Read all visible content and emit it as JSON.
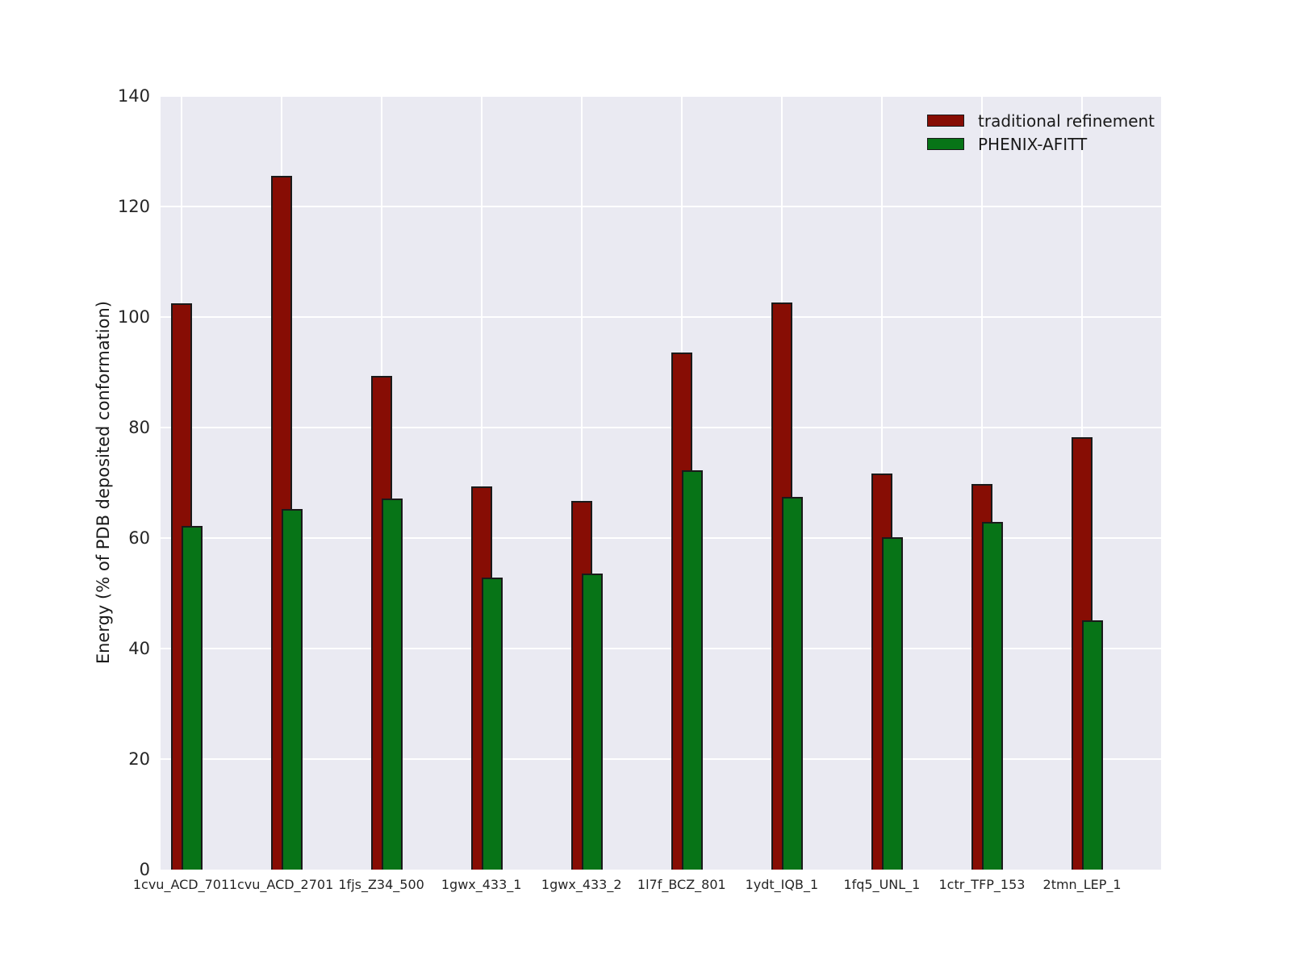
{
  "figure": {
    "ylabel": "Energy (% of PDB deposited conformation)"
  },
  "legend": {
    "items": [
      {
        "label": "traditional refinement",
        "color": "#870D04"
      },
      {
        "label": "PHENIX-AFITT",
        "color": "#077417"
      }
    ]
  },
  "chart_data": {
    "type": "bar",
    "title": "",
    "xlabel": "",
    "ylabel": "Energy (% of PDB deposited conformation)",
    "categories": [
      "1cvu_ACD_701",
      "1cvu_ACD_2701",
      "1fjs_Z34_500",
      "1gwx_433_1",
      "1gwx_433_2",
      "1l7f_BCZ_801",
      "1ydt_IQB_1",
      "1fq5_UNL_1",
      "1ctr_TFP_153",
      "2tmn_LEP_1"
    ],
    "series": [
      {
        "name": "traditional refinement",
        "color": "#870D04",
        "values": [
          102.5,
          125.6,
          89.3,
          69.3,
          66.7,
          93.6,
          102.6,
          71.7,
          69.8,
          78.2
        ]
      },
      {
        "name": "PHENIX-AFITT",
        "color": "#077417",
        "values": [
          62.2,
          65.3,
          67.2,
          52.8,
          53.6,
          72.3,
          67.4,
          60.1,
          62.9,
          45.1
        ]
      }
    ],
    "ylim": [
      0,
      140
    ],
    "yticks": [
      0,
      20,
      40,
      60,
      80,
      100,
      120,
      140
    ],
    "grid": true,
    "legend_position": "upper right",
    "plot_background": "#EAEAF2",
    "grid_color": "#FFFFFF",
    "bar_edge_color": "#1A1A1A"
  }
}
